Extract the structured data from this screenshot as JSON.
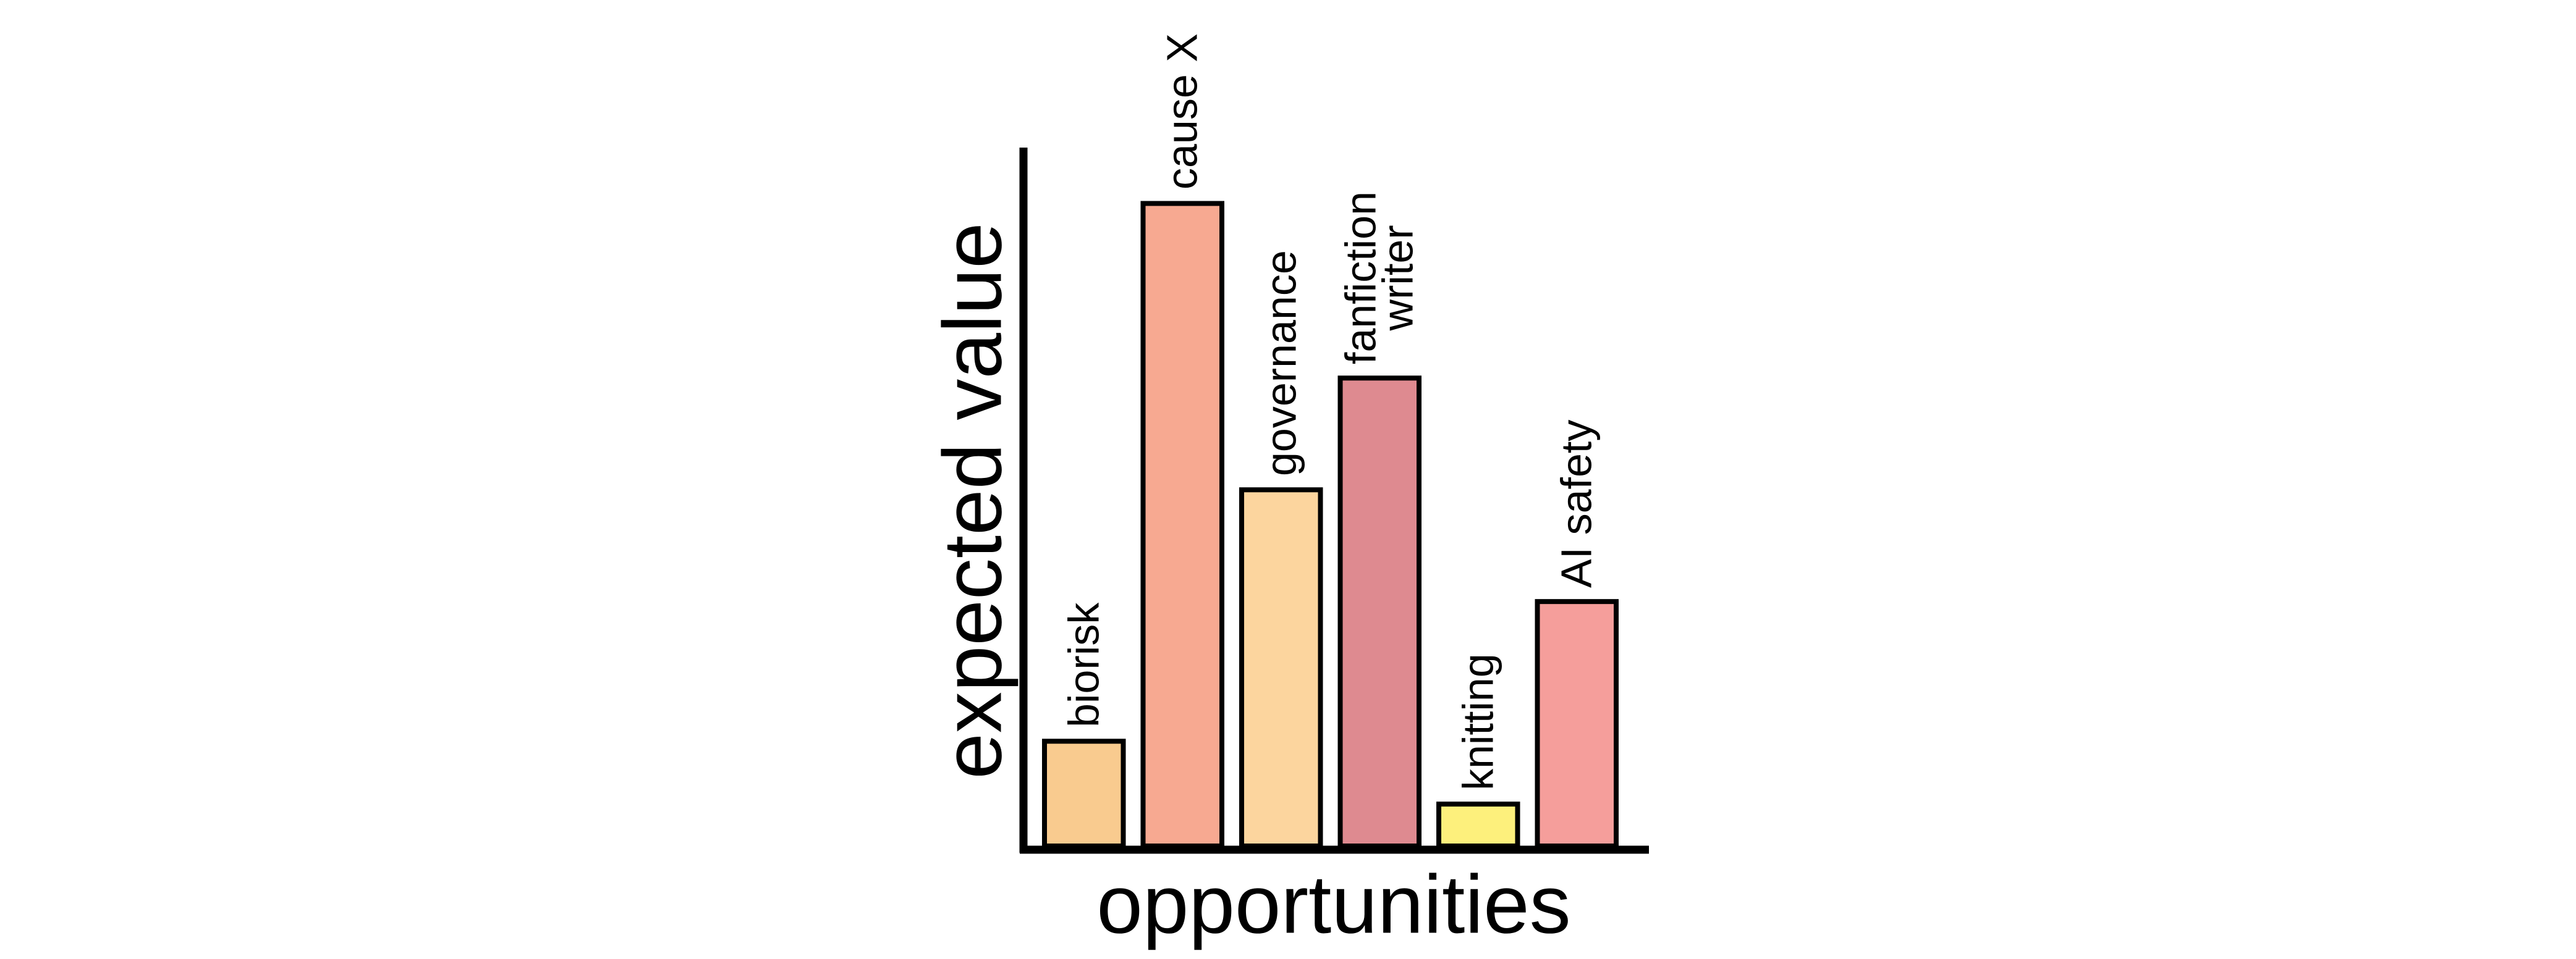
{
  "chart_data": {
    "type": "bar",
    "ylabel": "expected value",
    "xlabel": "opportunities",
    "categories": [
      "biorisk",
      "cause X",
      "governance",
      "fanfiction\nwriter",
      "knitting",
      "AI safety"
    ],
    "values": [
      15,
      92,
      51,
      67,
      6,
      35
    ],
    "colors": [
      "#f9cb8f",
      "#f7a991",
      "#fcd59e",
      "#de8a90",
      "#fdf07c",
      "#f59e9b"
    ],
    "ylim": [
      0,
      100
    ]
  }
}
